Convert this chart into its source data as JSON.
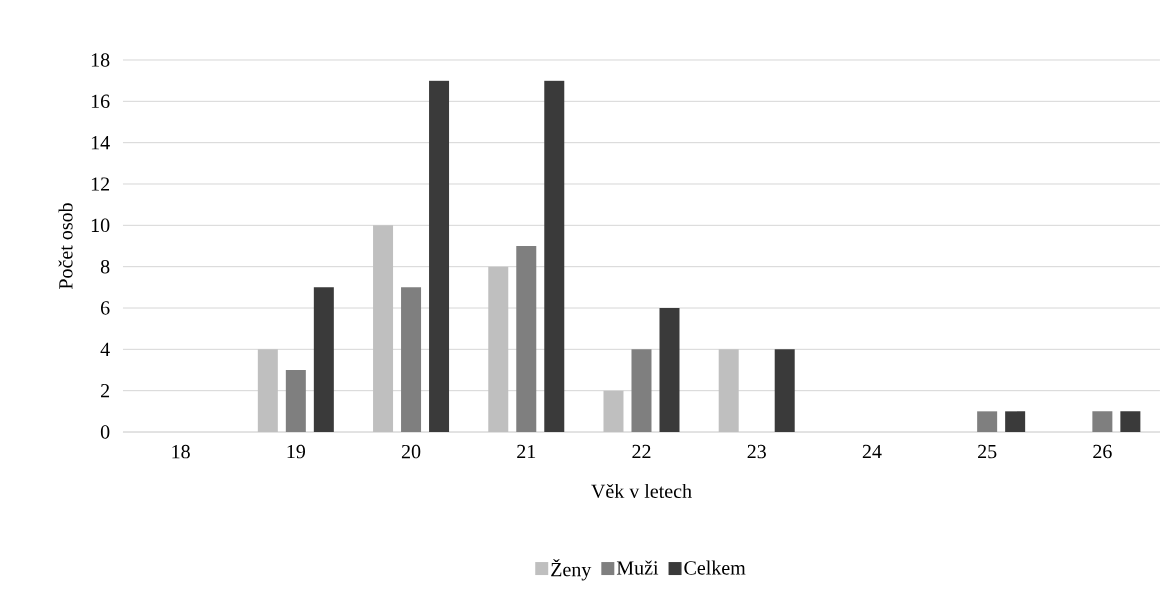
{
  "chart_data": {
    "type": "bar",
    "xlabel": "Věk v letech",
    "ylabel": "Počet osob",
    "categories": [
      "18",
      "19",
      "20",
      "21",
      "22",
      "23",
      "24",
      "25",
      "26"
    ],
    "series": [
      {
        "name": "Ženy",
        "color": "#bfbfbf",
        "values": [
          0,
          4,
          10,
          8,
          2,
          4,
          0,
          0,
          0
        ]
      },
      {
        "name": "Muži",
        "color": "#7f7f7f",
        "values": [
          0,
          3,
          7,
          9,
          4,
          0,
          0,
          1,
          1
        ]
      },
      {
        "name": "Celkem",
        "color": "#3a3a3a",
        "values": [
          0,
          7,
          17,
          17,
          6,
          4,
          0,
          1,
          1
        ]
      }
    ],
    "ylim": [
      0,
      18
    ],
    "yticks": [
      0,
      2,
      4,
      6,
      8,
      10,
      12,
      14,
      16,
      18
    ],
    "grid": "y",
    "legend": "bottom"
  }
}
